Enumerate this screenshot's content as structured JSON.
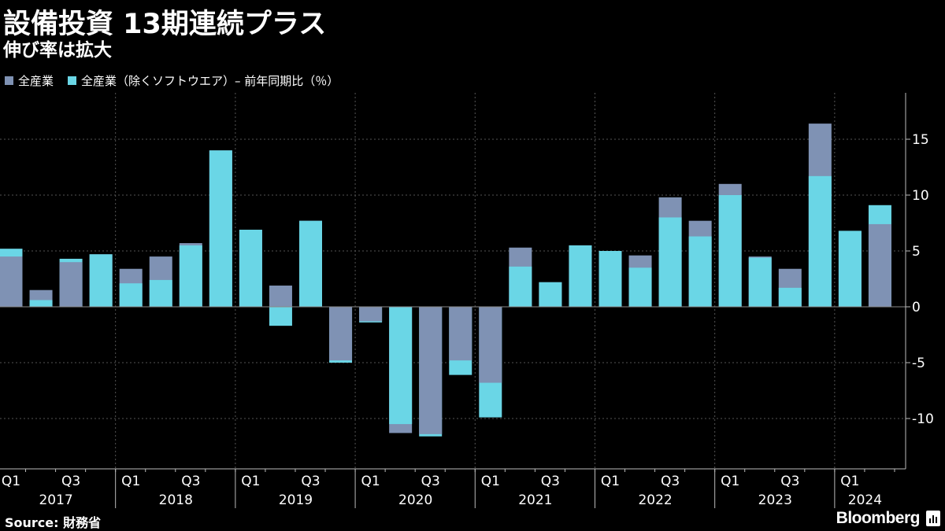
{
  "title": "設備投資 13期連続プラス",
  "subtitle": "伸び率は拡大",
  "legend": [
    {
      "label": "全産業",
      "color": "#7f92b4"
    },
    {
      "label": "全産業（除くソフトウエア）– 前年同期比（％）",
      "color": "#6ad6e6"
    }
  ],
  "source": "Source: 財務省",
  "brand": "Bloomberg",
  "brand_icon": "bloomberg-terminal-icon",
  "chart_data": {
    "type": "bar",
    "categories": [
      "2017Q1",
      "2017Q2",
      "2017Q3",
      "2017Q4",
      "2018Q1",
      "2018Q2",
      "2018Q3",
      "2018Q4",
      "2019Q1",
      "2019Q2",
      "2019Q3",
      "2019Q4",
      "2020Q1",
      "2020Q2",
      "2020Q3",
      "2020Q4",
      "2021Q1",
      "2021Q2",
      "2021Q3",
      "2021Q4",
      "2022Q1",
      "2022Q2",
      "2022Q3",
      "2022Q4",
      "2023Q1",
      "2023Q2",
      "2023Q3",
      "2023Q4",
      "2024Q1",
      "2024Q2"
    ],
    "series": [
      {
        "name": "全産業",
        "color": "#7f92b4",
        "values": [
          4.5,
          1.5,
          4.0,
          4.7,
          3.4,
          4.5,
          5.7,
          14.0,
          6.9,
          1.9,
          7.7,
          -4.8,
          -1.3,
          -11.3,
          -11.4,
          -4.8,
          -6.8,
          5.3,
          2.2,
          5.5,
          5.0,
          4.6,
          9.8,
          7.7,
          11.0,
          4.5,
          3.4,
          16.4,
          6.8,
          7.4
        ]
      },
      {
        "name": "全産業（除くソフトウエア）",
        "color": "#6ad6e6",
        "values": [
          5.2,
          0.6,
          4.3,
          4.7,
          2.1,
          2.4,
          5.5,
          14.0,
          6.9,
          -1.7,
          7.7,
          -5.0,
          -1.4,
          -10.5,
          -11.6,
          -6.1,
          -9.9,
          3.6,
          2.2,
          5.5,
          5.0,
          3.5,
          8.0,
          6.3,
          10.0,
          4.4,
          1.7,
          11.7,
          6.8,
          9.1
        ]
      }
    ],
    "ylim": [
      -13,
      19
    ],
    "yticks": [
      15,
      10,
      5,
      0,
      -5,
      -10
    ],
    "xtick_labels": [
      "Q1",
      "Q3",
      "Q1",
      "Q3",
      "Q1",
      "Q3",
      "Q1",
      "Q3",
      "Q1",
      "Q3",
      "Q1",
      "Q3",
      "Q1",
      "Q3",
      "Q1"
    ],
    "year_labels": [
      "2017",
      "2018",
      "2019",
      "2020",
      "2021",
      "2022",
      "2023",
      "2024"
    ],
    "grid": true,
    "legend_position": "top-left"
  }
}
